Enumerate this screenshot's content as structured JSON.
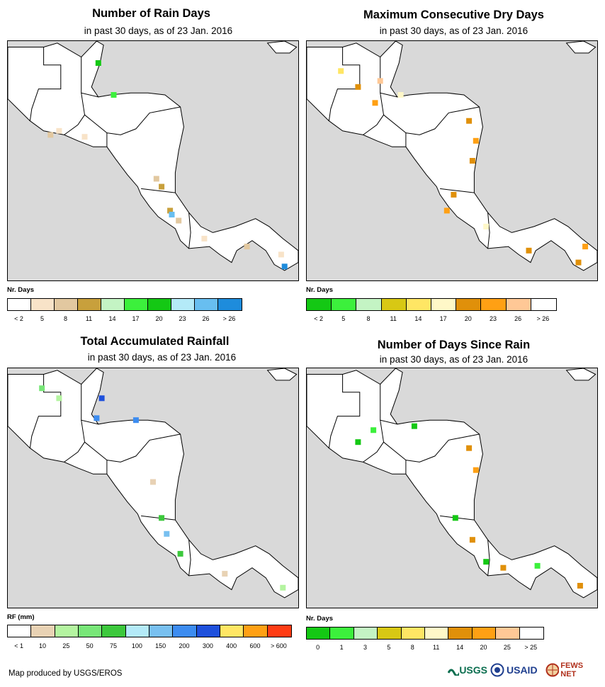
{
  "panels": [
    {
      "title": "Number of Rain Days",
      "subtitle": "in past 30 days, as of 23 Jan. 2016",
      "legend_title": "Nr. Days",
      "colors": [
        "#ffffff",
        "#f8e3c8",
        "#e2c8a0",
        "#c8a03c",
        "#c4f4c4",
        "#3cf03c",
        "#14c814",
        "#b4eaf8",
        "#68bef0",
        "#1e8cdc"
      ],
      "ticks": [
        "< 2",
        "5",
        "8",
        "11",
        "14",
        "17",
        "20",
        "23",
        "26",
        "> 26"
      ],
      "pixels": [
        {
          "lon": -90.5,
          "lat": 14.0,
          "c": "#f8e3c8"
        },
        {
          "lon": -91.0,
          "lat": 13.8,
          "c": "#e2c8a0"
        },
        {
          "lon": -89.0,
          "lat": 13.7,
          "c": "#f8e3c8"
        },
        {
          "lon": -87.3,
          "lat": 15.8,
          "c": "#3cf03c"
        },
        {
          "lon": -88.2,
          "lat": 17.4,
          "c": "#14c814"
        },
        {
          "lon": -84.8,
          "lat": 11.6,
          "c": "#e2c8a0"
        },
        {
          "lon": -84.5,
          "lat": 11.2,
          "c": "#c8a03c"
        },
        {
          "lon": -84.0,
          "lat": 10.0,
          "c": "#c8a03c"
        },
        {
          "lon": -83.9,
          "lat": 9.8,
          "c": "#68bef0"
        },
        {
          "lon": -83.5,
          "lat": 9.5,
          "c": "#e2c8a0"
        },
        {
          "lon": -82.0,
          "lat": 8.6,
          "c": "#f8e3c8"
        },
        {
          "lon": -79.5,
          "lat": 8.2,
          "c": "#e2c8a0"
        },
        {
          "lon": -77.5,
          "lat": 7.8,
          "c": "#f8e3c8"
        },
        {
          "lon": -77.3,
          "lat": 7.2,
          "c": "#1e8cdc"
        }
      ]
    },
    {
      "title": "Maximum Consecutive Dry Days",
      "subtitle": "in past 30 days, as of 23 Jan. 2016",
      "legend_title": "Nr. Days",
      "colors": [
        "#14c814",
        "#3cf03c",
        "#c4f4c4",
        "#d8c814",
        "#ffe664",
        "#fff8c8",
        "#e0900a",
        "#ffa014",
        "#ffc896",
        "#ffffff"
      ],
      "ticks": [
        "< 2",
        "5",
        "8",
        "11",
        "14",
        "17",
        "20",
        "23",
        "26",
        "> 26"
      ],
      "pixels": [
        {
          "lon": -91.5,
          "lat": 17.0,
          "c": "#ffe664"
        },
        {
          "lon": -90.5,
          "lat": 16.2,
          "c": "#e0900a"
        },
        {
          "lon": -89.5,
          "lat": 15.4,
          "c": "#ffa014"
        },
        {
          "lon": -89.2,
          "lat": 16.5,
          "c": "#ffc896"
        },
        {
          "lon": -88.0,
          "lat": 15.8,
          "c": "#fff8c8"
        },
        {
          "lon": -84.0,
          "lat": 14.5,
          "c": "#e0900a"
        },
        {
          "lon": -83.6,
          "lat": 13.5,
          "c": "#ffa014"
        },
        {
          "lon": -83.8,
          "lat": 12.5,
          "c": "#e0900a"
        },
        {
          "lon": -84.9,
          "lat": 10.8,
          "c": "#e0900a"
        },
        {
          "lon": -85.3,
          "lat": 10.0,
          "c": "#ffa014"
        },
        {
          "lon": -83.0,
          "lat": 9.2,
          "c": "#fff8c8"
        },
        {
          "lon": -80.5,
          "lat": 8.0,
          "c": "#e0900a"
        },
        {
          "lon": -77.6,
          "lat": 7.4,
          "c": "#e0900a"
        },
        {
          "lon": -77.2,
          "lat": 8.2,
          "c": "#ffa014"
        }
      ]
    },
    {
      "title": "Total Accumulated Rainfall",
      "subtitle": "in past 30 days, as of 23 Jan. 2016",
      "legend_title": "RF (mm)",
      "colors": [
        "#ffffff",
        "#e8d2b4",
        "#b4f4a0",
        "#78e678",
        "#3cc83c",
        "#b4eaf8",
        "#78c0f0",
        "#3c8cf0",
        "#1e50dc",
        "#ffe664",
        "#ffa014",
        "#ff3c14"
      ],
      "ticks": [
        "< 1",
        "10",
        "25",
        "50",
        "75",
        "100",
        "150",
        "200",
        "300",
        "400",
        "600",
        "> 600"
      ],
      "pixels": [
        {
          "lon": -91.5,
          "lat": 17.5,
          "c": "#78e678"
        },
        {
          "lon": -90.5,
          "lat": 17.0,
          "c": "#b4f4a0"
        },
        {
          "lon": -88.0,
          "lat": 17.0,
          "c": "#1e50dc"
        },
        {
          "lon": -88.3,
          "lat": 16.0,
          "c": "#3c8cf0"
        },
        {
          "lon": -86.0,
          "lat": 15.9,
          "c": "#3c8cf0"
        },
        {
          "lon": -85.0,
          "lat": 12.8,
          "c": "#e8d2b4"
        },
        {
          "lon": -84.5,
          "lat": 11.0,
          "c": "#3cc83c"
        },
        {
          "lon": -84.2,
          "lat": 10.2,
          "c": "#78c0f0"
        },
        {
          "lon": -83.4,
          "lat": 9.2,
          "c": "#3cc83c"
        },
        {
          "lon": -80.8,
          "lat": 8.2,
          "c": "#e8d2b4"
        },
        {
          "lon": -77.4,
          "lat": 7.5,
          "c": "#b4f4a0"
        }
      ]
    },
    {
      "title": "Number of Days Since Rain",
      "subtitle": "in past 30 days, as of 23 Jan. 2016",
      "legend_title": "Nr. Days",
      "colors": [
        "#14c814",
        "#3cf03c",
        "#c4f4c4",
        "#d8c814",
        "#ffe664",
        "#fff8c8",
        "#e0900a",
        "#ffa014",
        "#ffc896",
        "#ffffff"
      ],
      "ticks": [
        "0",
        "1",
        "3",
        "5",
        "8",
        "11",
        "14",
        "20",
        "25",
        "> 25"
      ],
      "pixels": [
        {
          "lon": -90.5,
          "lat": 14.8,
          "c": "#14c814"
        },
        {
          "lon": -89.6,
          "lat": 15.4,
          "c": "#3cf03c"
        },
        {
          "lon": -87.2,
          "lat": 15.6,
          "c": "#14c814"
        },
        {
          "lon": -84.0,
          "lat": 14.5,
          "c": "#e0900a"
        },
        {
          "lon": -83.6,
          "lat": 13.4,
          "c": "#ffa014"
        },
        {
          "lon": -84.8,
          "lat": 11.0,
          "c": "#14c814"
        },
        {
          "lon": -83.8,
          "lat": 9.9,
          "c": "#e0900a"
        },
        {
          "lon": -83.0,
          "lat": 8.8,
          "c": "#14c814"
        },
        {
          "lon": -82.0,
          "lat": 8.5,
          "c": "#e0900a"
        },
        {
          "lon": -80.0,
          "lat": 8.6,
          "c": "#3cf03c"
        },
        {
          "lon": -77.5,
          "lat": 7.6,
          "c": "#e0900a"
        }
      ]
    }
  ],
  "footer": "Map produced by USGS/EROS",
  "logos": [
    "USGS",
    "USAID",
    "FEWS NET"
  ]
}
